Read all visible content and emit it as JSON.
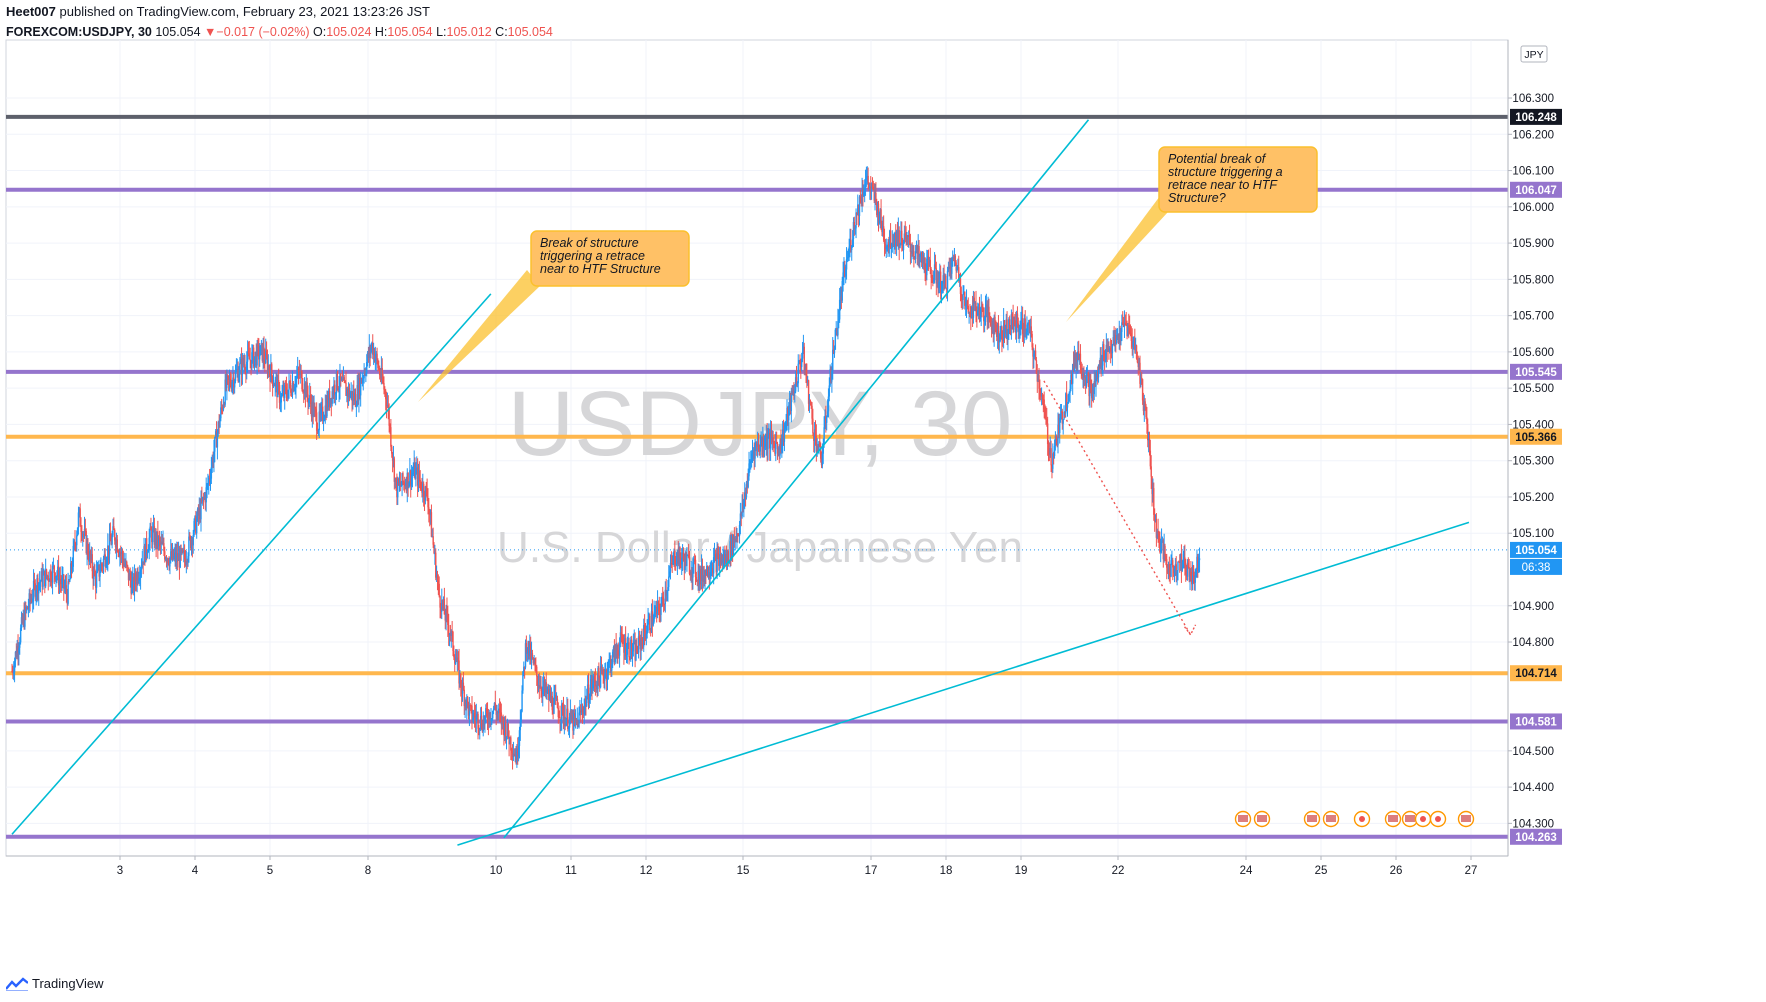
{
  "header": {
    "author": "Heet007",
    "published": "published on TradingView.com, February 23, 2021 13:23:26 JST",
    "symbol": "FOREXCOM:USDJPY, 30",
    "last": "105.054",
    "change": "−0.017 (−0.02%)",
    "o_label": "O:",
    "o_val": "105.024",
    "h_label": "H:",
    "h_val": "105.054",
    "l_label": "L:",
    "l_val": "105.012",
    "c_label": "C:",
    "c_val": "105.054"
  },
  "watermark": {
    "symbol": "USDJPY, 30",
    "description": "U.S. Dollar / Japanese Yen"
  },
  "footer": {
    "brand": "TradingView"
  },
  "currency_badge": "JPY",
  "countdown": "06:38",
  "annotations": [
    {
      "text": [
        "Break of structure",
        "triggering a retrace",
        "near to HTF Structure"
      ]
    },
    {
      "text": [
        "Potential break of",
        "structure triggering a",
        "retrace near to HTF",
        "Structure?"
      ]
    }
  ],
  "chart_data": {
    "type": "candlestick",
    "ylim": [
      104.21,
      106.46
    ],
    "y_ticks": [
      "106.300",
      "106.200",
      "106.100",
      "106.000",
      "105.900",
      "105.800",
      "105.700",
      "105.600",
      "105.500",
      "105.400",
      "105.300",
      "105.200",
      "105.100",
      "104.900",
      "104.800",
      "104.500",
      "104.400",
      "104.300"
    ],
    "x_ticks": [
      "3",
      "4",
      "5",
      "8",
      "10",
      "11",
      "12",
      "15",
      "17",
      "18",
      "19",
      "22",
      "24",
      "25",
      "26",
      "27"
    ],
    "horizontal_levels": [
      {
        "price": 106.248,
        "label": "106.248",
        "color": "#5d606b",
        "width": 4
      },
      {
        "price": 106.047,
        "label": "106.047",
        "color": "#9575cd",
        "width": 4
      },
      {
        "price": 105.545,
        "label": "105.545",
        "color": "#9575cd",
        "width": 4
      },
      {
        "price": 105.366,
        "label": "105.366",
        "color": "#ffb74d",
        "width": 4
      },
      {
        "price": 105.054,
        "label": "105.054",
        "color": "#2196f3",
        "width": 1,
        "dotted": true
      },
      {
        "price": 104.714,
        "label": "104.714",
        "color": "#ffb74d",
        "width": 4
      },
      {
        "price": 104.581,
        "label": "104.581",
        "color": "#9575cd",
        "width": 4
      },
      {
        "price": 104.263,
        "label": "104.263",
        "color": "#9575cd",
        "width": 4
      }
    ],
    "path_points": [
      [
        0,
        104.72
      ],
      [
        0.6,
        104.86
      ],
      [
        1.3,
        104.96
      ],
      [
        2.3,
        105.0
      ],
      [
        3.0,
        104.93
      ],
      [
        3.6,
        105.15
      ],
      [
        4.5,
        104.97
      ],
      [
        5.5,
        105.1
      ],
      [
        6.5,
        104.95
      ],
      [
        7.5,
        105.1
      ],
      [
        8.5,
        105.03
      ],
      [
        9.3,
        105.03
      ],
      [
        10.5,
        105.22
      ],
      [
        11.5,
        105.5
      ],
      [
        12.5,
        105.57
      ],
      [
        13.5,
        105.6
      ],
      [
        14.5,
        105.47
      ],
      [
        15.5,
        105.54
      ],
      [
        16.5,
        105.4
      ],
      [
        17.5,
        105.52
      ],
      [
        18.5,
        105.47
      ],
      [
        19.4,
        105.62
      ],
      [
        20.2,
        105.47
      ],
      [
        20.7,
        105.22
      ],
      [
        21.7,
        105.27
      ],
      [
        22.4,
        105.2
      ],
      [
        23.0,
        104.93
      ],
      [
        23.6,
        104.83
      ],
      [
        24.2,
        104.68
      ],
      [
        24.7,
        104.6
      ],
      [
        25.4,
        104.58
      ],
      [
        26.0,
        104.62
      ],
      [
        26.6,
        104.56
      ],
      [
        27.2,
        104.48
      ],
      [
        27.7,
        104.8
      ],
      [
        28.3,
        104.7
      ],
      [
        29.0,
        104.64
      ],
      [
        29.7,
        104.6
      ],
      [
        30.4,
        104.57
      ],
      [
        31.2,
        104.68
      ],
      [
        32.0,
        104.72
      ],
      [
        32.8,
        104.8
      ],
      [
        33.6,
        104.77
      ],
      [
        34.3,
        104.85
      ],
      [
        35.0,
        104.9
      ],
      [
        35.7,
        105.04
      ],
      [
        36.4,
        105.02
      ],
      [
        37.1,
        104.98
      ],
      [
        37.8,
        105.02
      ],
      [
        38.5,
        105.03
      ],
      [
        39.2,
        105.12
      ],
      [
        39.9,
        105.33
      ],
      [
        40.6,
        105.36
      ],
      [
        41.4,
        105.34
      ],
      [
        42.0,
        105.47
      ],
      [
        42.6,
        105.6
      ],
      [
        43.2,
        105.38
      ],
      [
        43.6,
        105.3
      ],
      [
        44.2,
        105.58
      ],
      [
        44.8,
        105.8
      ],
      [
        45.4,
        105.96
      ],
      [
        46.0,
        106.08
      ],
      [
        46.5,
        106.02
      ],
      [
        47.1,
        105.9
      ],
      [
        47.6,
        105.92
      ],
      [
        48.3,
        105.9
      ],
      [
        49.0,
        105.85
      ],
      [
        49.6,
        105.82
      ],
      [
        50.2,
        105.78
      ],
      [
        50.8,
        105.86
      ],
      [
        51.4,
        105.72
      ],
      [
        52.0,
        105.72
      ],
      [
        52.6,
        105.7
      ],
      [
        53.2,
        105.65
      ],
      [
        54.0,
        105.68
      ],
      [
        54.8,
        105.66
      ],
      [
        55.4,
        105.5
      ],
      [
        56.0,
        105.3
      ],
      [
        56.7,
        105.45
      ],
      [
        57.4,
        105.6
      ],
      [
        58.2,
        105.48
      ],
      [
        58.8,
        105.6
      ],
      [
        59.4,
        105.62
      ],
      [
        60.0,
        105.68
      ],
      [
        60.6,
        105.6
      ],
      [
        61.2,
        105.38
      ],
      [
        61.6,
        105.12
      ],
      [
        62.3,
        105.0
      ],
      [
        63.0,
        105.02
      ],
      [
        63.7,
        104.98
      ],
      [
        64.0,
        105.05
      ]
    ],
    "trend_lines": [
      {
        "x1": 0,
        "y1": 104.27,
        "x2": 25.8,
        "y2": 105.76
      },
      {
        "x1": 26.5,
        "y1": 104.26,
        "x2": 58.0,
        "y2": 106.24
      },
      {
        "x1": 24.0,
        "y1": 104.24,
        "x2": 78.5,
        "y2": 105.13
      }
    ],
    "projection": {
      "x1": 55.6,
      "y1": 105.52,
      "x2": 63.5,
      "y2": 104.82
    }
  }
}
